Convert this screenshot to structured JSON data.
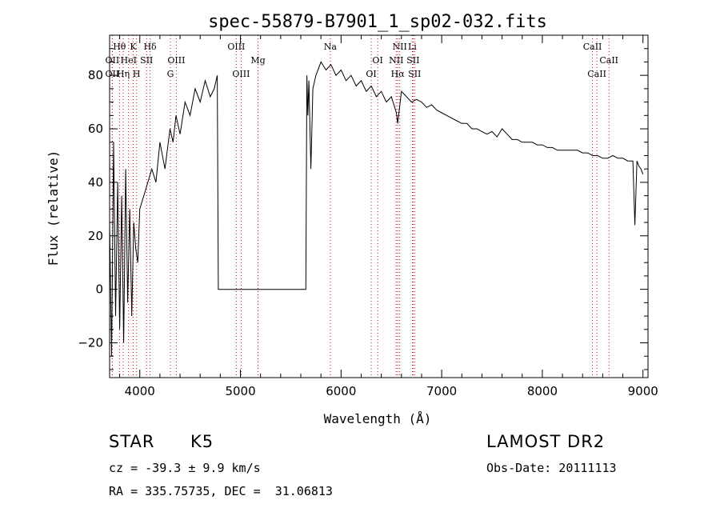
{
  "chart_data": {
    "type": "line",
    "title": "spec-55879-B7901_1_sp02-032.fits",
    "xlabel": "Wavelength (Å)",
    "ylabel": "Flux (relative)",
    "xlim": [
      3700,
      9050
    ],
    "ylim": [
      -33,
      95
    ],
    "xticks": [
      4000,
      5000,
      6000,
      7000,
      8000,
      9000
    ],
    "yticks": [
      -20,
      0,
      20,
      40,
      60,
      80
    ],
    "grid": false,
    "line_color": "#000000",
    "marker_color": "#cc0000",
    "series": [
      {
        "x": [
          3700,
          3720,
          3740,
          3760,
          3780,
          3800,
          3820,
          3840,
          3860,
          3880,
          3900,
          3920,
          3940,
          3960,
          3980,
          4000,
          4040,
          4080,
          4120,
          4160,
          4200,
          4250,
          4300,
          4330,
          4360,
          4400,
          4450,
          4500,
          4550,
          4600,
          4650,
          4700,
          4740,
          4770,
          4780,
          5650,
          5660,
          5670,
          5680,
          5700,
          5720,
          5750,
          5800,
          5850,
          5900,
          5950,
          6000,
          6050,
          6100,
          6150,
          6200,
          6250,
          6300,
          6350,
          6400,
          6450,
          6500,
          6550,
          6563,
          6600,
          6650,
          6700,
          6750,
          6800,
          6850,
          6900,
          6950,
          7000,
          7050,
          7100,
          7150,
          7200,
          7250,
          7300,
          7350,
          7400,
          7450,
          7500,
          7550,
          7600,
          7650,
          7700,
          7750,
          7800,
          7850,
          7900,
          7950,
          8000,
          8050,
          8100,
          8150,
          8200,
          8250,
          8300,
          8350,
          8400,
          8450,
          8500,
          8550,
          8600,
          8650,
          8700,
          8750,
          8800,
          8850,
          8900,
          8920,
          8940,
          8960,
          8980,
          9000
        ],
        "y": [
          25,
          -25,
          55,
          -10,
          40,
          -15,
          35,
          -20,
          45,
          -5,
          30,
          -10,
          25,
          15,
          10,
          30,
          35,
          40,
          45,
          40,
          55,
          45,
          60,
          55,
          65,
          58,
          70,
          65,
          75,
          70,
          78,
          72,
          75,
          80,
          0,
          0,
          80,
          65,
          78,
          45,
          75,
          80,
          85,
          82,
          84,
          80,
          82,
          78,
          80,
          76,
          78,
          74,
          76,
          72,
          74,
          70,
          72,
          66,
          62,
          74,
          72,
          70,
          71,
          70,
          68,
          69,
          67,
          66,
          65,
          64,
          63,
          62,
          62,
          60,
          60,
          59,
          58,
          59,
          57,
          60,
          58,
          56,
          56,
          55,
          55,
          55,
          54,
          54,
          53,
          53,
          52,
          52,
          52,
          52,
          52,
          51,
          51,
          50,
          50,
          49,
          49,
          50,
          49,
          49,
          48,
          48,
          24,
          48,
          46,
          45,
          43
        ]
      }
    ],
    "lines": [
      {
        "label": "Hθ",
        "x": 3798,
        "row": 0
      },
      {
        "label": "K",
        "x": 3934,
        "row": 0
      },
      {
        "label": "Hδ",
        "x": 4102,
        "row": 0
      },
      {
        "label": "NII",
        "x": 6583,
        "row": 0
      },
      {
        "label": "Li",
        "x": 6708,
        "row": 0
      },
      {
        "label": "Na",
        "x": 5893,
        "row": 0
      },
      {
        "label": "OIII",
        "x": 4959,
        "row": 0
      },
      {
        "label": "CaII",
        "x": 8498,
        "row": 0
      },
      {
        "label": "OII",
        "x": 3727,
        "row": 1
      },
      {
        "label": "HeI",
        "x": 3889,
        "row": 1
      },
      {
        "label": "SII",
        "x": 4068,
        "row": 1
      },
      {
        "label": "OIII",
        "x": 4363,
        "row": 1
      },
      {
        "label": "Mg",
        "x": 5175,
        "row": 1
      },
      {
        "label": "OI",
        "x": 6364,
        "row": 1
      },
      {
        "label": "NII",
        "x": 6548,
        "row": 1
      },
      {
        "label": "SII",
        "x": 6716,
        "row": 1
      },
      {
        "label": "CaII",
        "x": 8662,
        "row": 1
      },
      {
        "label": "OII",
        "x": 3727,
        "row": 2
      },
      {
        "label": "Hη",
        "x": 3835,
        "row": 2
      },
      {
        "label": "H",
        "x": 3968,
        "row": 2
      },
      {
        "label": "G",
        "x": 4304,
        "row": 2
      },
      {
        "label": "OIII",
        "x": 5007,
        "row": 2
      },
      {
        "label": "OI",
        "x": 6300,
        "row": 2
      },
      {
        "label": "Hα",
        "x": 6563,
        "row": 2
      },
      {
        "label": "SII",
        "x": 6731,
        "row": 2
      },
      {
        "label": "CaII",
        "x": 8542,
        "row": 2
      }
    ]
  },
  "info": {
    "class_label": "STAR",
    "subclass_label": "K5",
    "survey_label": "LAMOST DR2",
    "redshift_text": "cz = -39.3 ± 9.9 km/s",
    "obsdate_text": "Obs-Date: 20111113",
    "coords_text": "RA = 335.75735, DEC =  31.06813"
  }
}
